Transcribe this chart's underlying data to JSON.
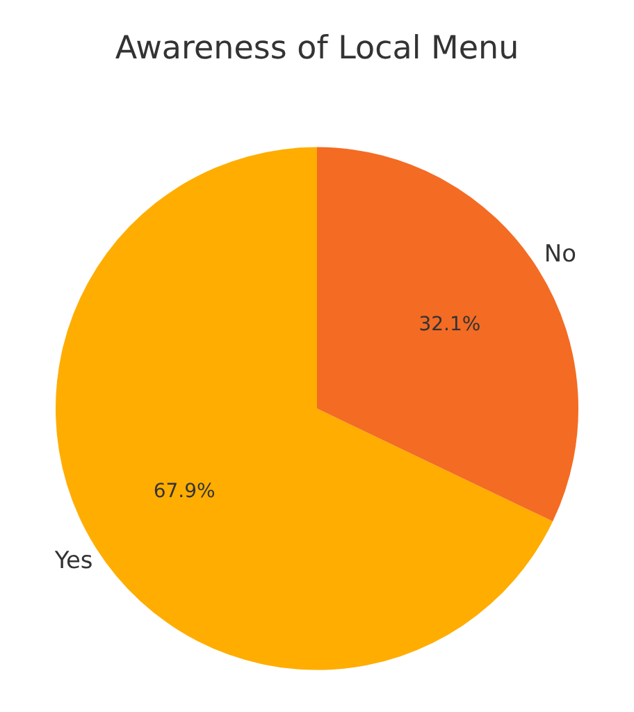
{
  "chart_data": {
    "type": "pie",
    "title": "Awareness of Local Menu",
    "categories": [
      "Yes",
      "No"
    ],
    "values": [
      67.9,
      32.1
    ],
    "colors": [
      "#ffad00",
      "#f46b23"
    ],
    "value_labels": [
      "67.9%",
      "32.1%"
    ]
  }
}
